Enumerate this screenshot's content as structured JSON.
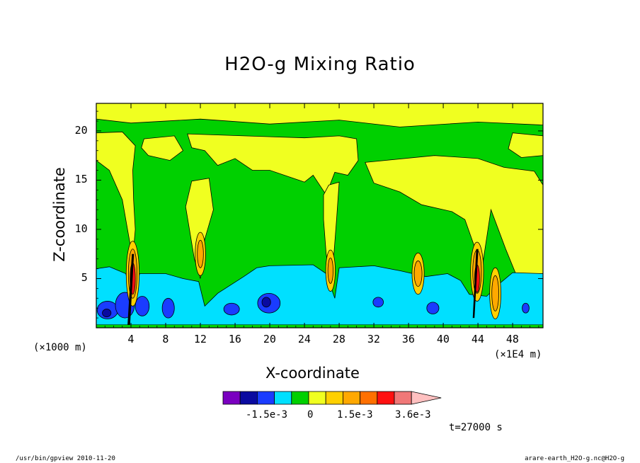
{
  "chart_data": {
    "type": "heatmap",
    "title": "H2O-g Mixing Ratio",
    "xlabel": "X-coordinate",
    "ylabel": "Z-coordinate",
    "x_unit_left": "(×1000 m)",
    "x_unit_right": "(×1E4 m)",
    "xlim": [
      0,
      51.5
    ],
    "ylim": [
      0,
      22.8
    ],
    "xticks": [
      4,
      8,
      12,
      16,
      20,
      24,
      28,
      32,
      36,
      40,
      44,
      48
    ],
    "yticks": [
      5,
      10,
      15,
      20
    ],
    "colorbar": {
      "labels": [
        "-1.5e-3",
        "0",
        "1.5e-3",
        "3.6e-3"
      ],
      "colors": [
        "#7a00c0",
        "#0a0aa0",
        "#1a3cff",
        "#00e0ff",
        "#00d000",
        "#f0ff20",
        "#ffd000",
        "#ffa800",
        "#ff7000",
        "#ff1010",
        "#f07878",
        "#ffc0c0"
      ]
    },
    "time_label": "t=27000 s",
    "footer_left": "/usr/bin/gpview  2010-11-20",
    "footer_right": "arare-earth_H2O-g.nc@H2O-g",
    "regions": {
      "top_band_y": [
        20.5,
        22.8
      ],
      "blue_layer_top": 6.5,
      "tower_x": [
        4,
        12,
        27,
        37,
        44,
        46
      ],
      "deep_blue_x": [
        0.5,
        3.5,
        7.5,
        15,
        19.5,
        32,
        38.5
      ]
    }
  }
}
